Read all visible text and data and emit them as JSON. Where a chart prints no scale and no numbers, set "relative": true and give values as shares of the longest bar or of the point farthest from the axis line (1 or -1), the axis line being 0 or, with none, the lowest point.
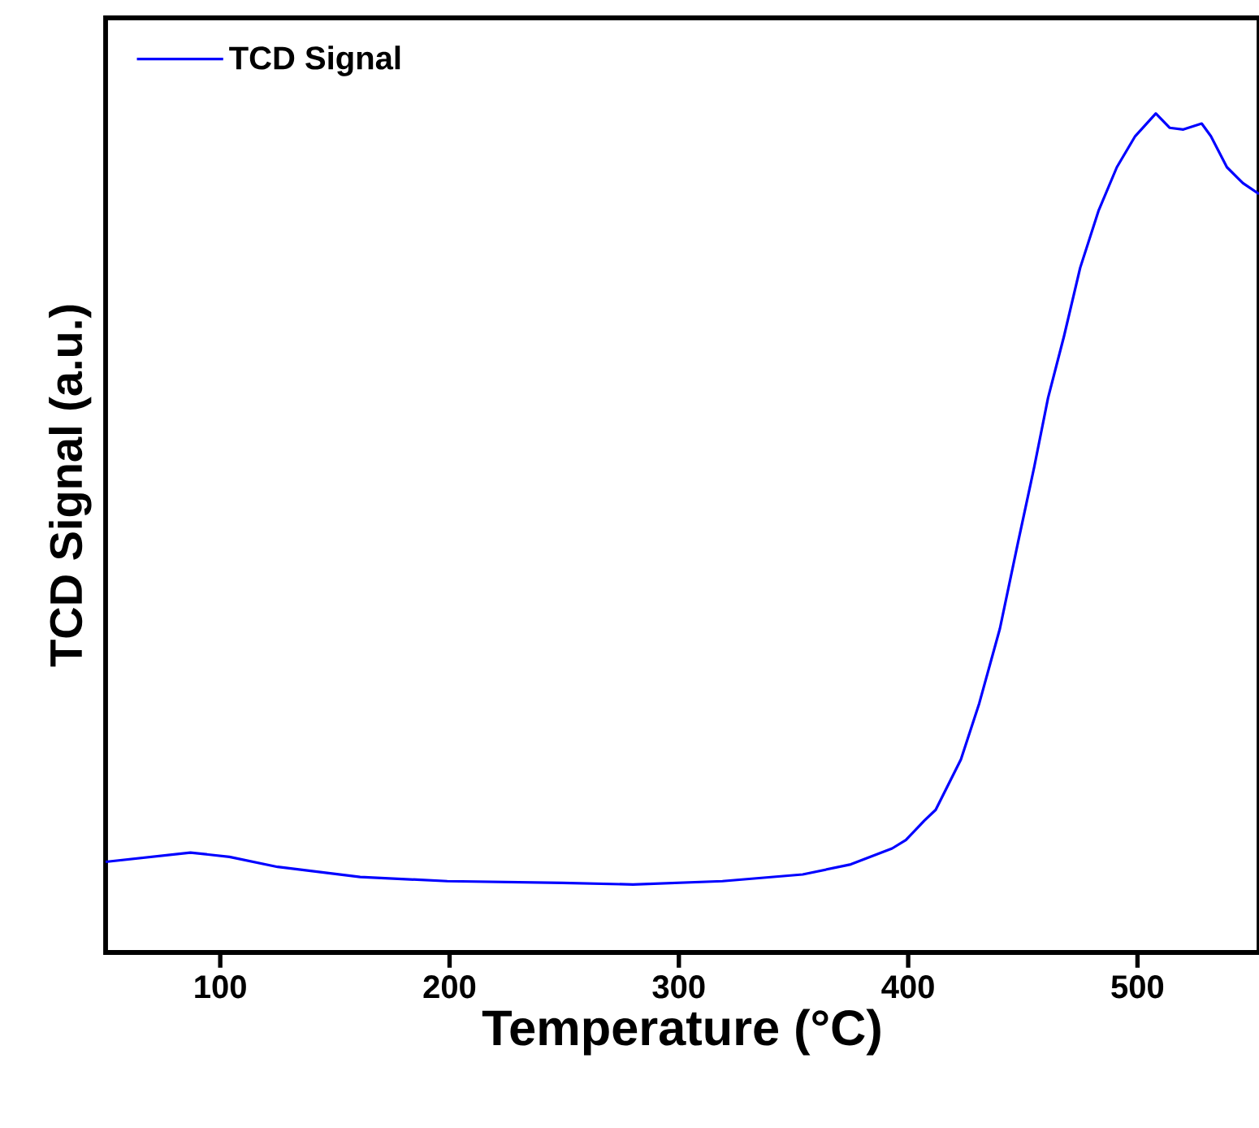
{
  "chart_data": {
    "type": "line",
    "xlabel": "Temperature (°C)",
    "ylabel": "TCD Signal (a.u.)",
    "relative": true,
    "legend": "top left",
    "xlim": [
      50,
      553
    ],
    "xticks": [
      100,
      200,
      300,
      400,
      500
    ],
    "series": [
      {
        "name": "TCD Signal",
        "color": "#0000ff",
        "x": [
          50,
          87,
          104,
          125,
          161,
          199,
          249,
          280,
          319,
          354,
          375,
          393,
          399,
          407,
          412,
          423,
          431,
          440,
          448,
          455,
          461,
          468,
          475,
          483,
          491,
          499,
          508,
          514,
          520,
          528,
          532,
          539,
          546,
          553
        ],
        "values": [
          0.108,
          0.119,
          0.114,
          0.102,
          0.09,
          0.085,
          0.083,
          0.081,
          0.085,
          0.093,
          0.105,
          0.124,
          0.134,
          0.157,
          0.17,
          0.23,
          0.297,
          0.386,
          0.49,
          0.579,
          0.661,
          0.735,
          0.816,
          0.884,
          0.936,
          0.973,
          1.0,
          0.983,
          0.981,
          0.988,
          0.973,
          0.936,
          0.917,
          0.904
        ]
      }
    ]
  }
}
